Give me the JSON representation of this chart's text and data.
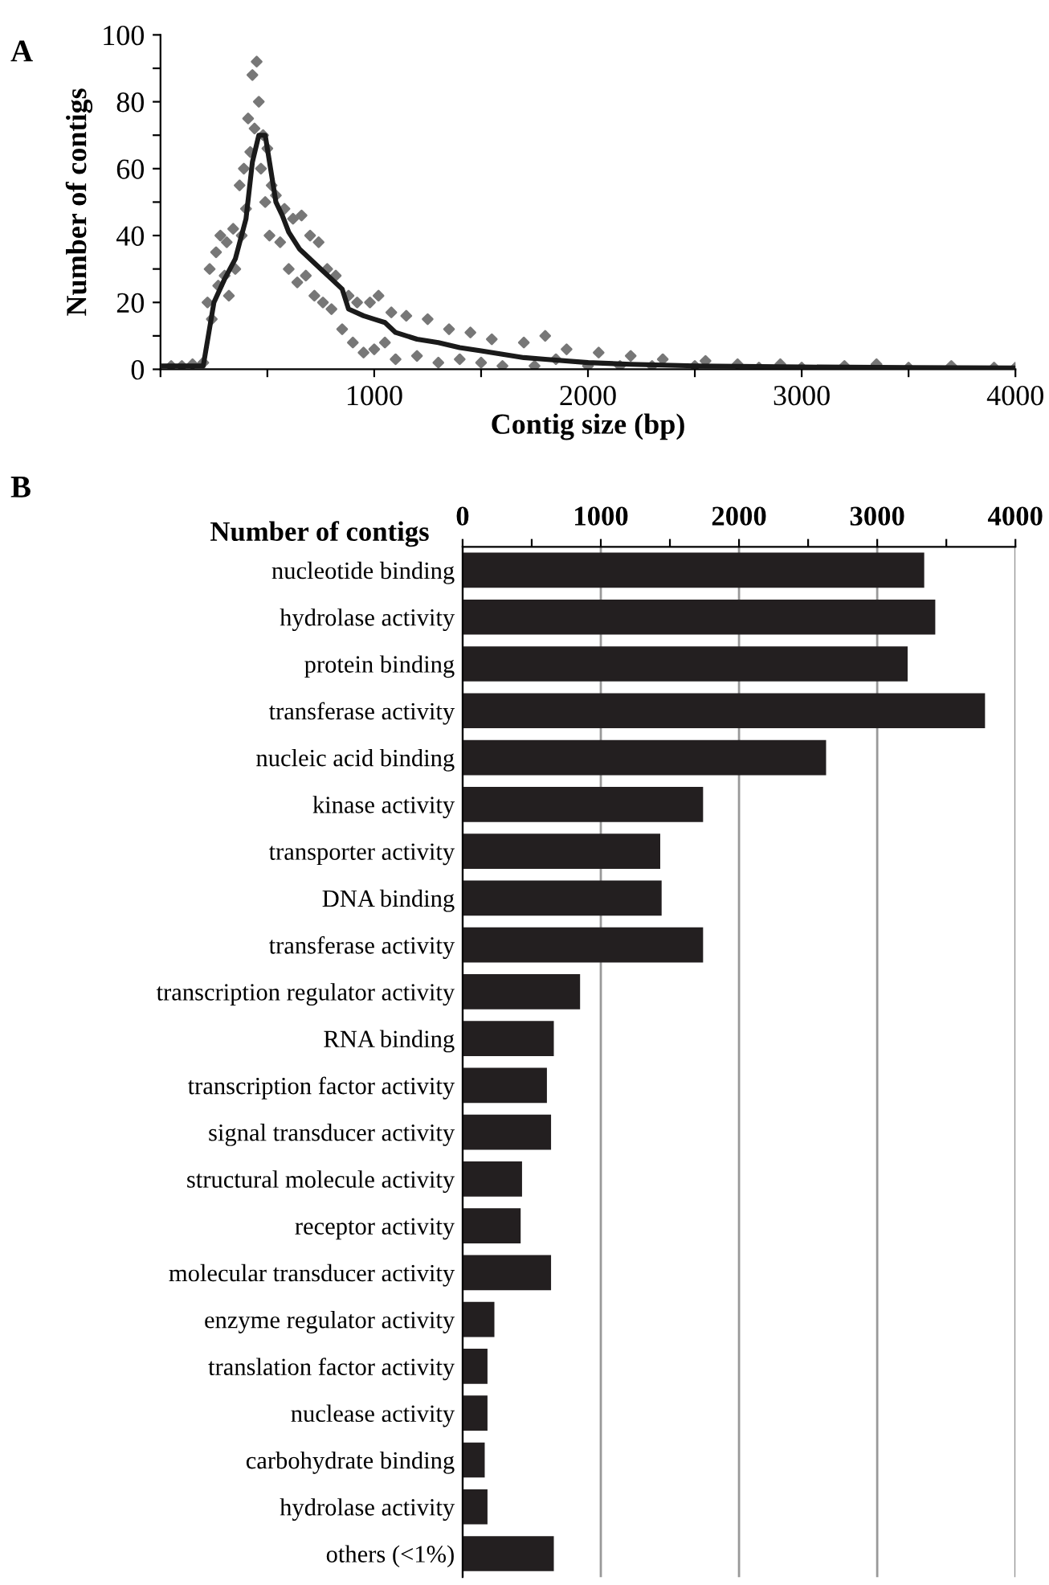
{
  "chart_data": [
    {
      "type": "scatter",
      "xlabel": "Contig size (bp)",
      "ylabel": "Number of contigs",
      "annotations": [
        "A"
      ],
      "xlim": [
        0,
        4000
      ],
      "xticks": [
        {
          "value": 0,
          "label": null
        },
        {
          "value": 500,
          "label": null
        },
        1000,
        {
          "value": 1500,
          "label": null
        },
        2000,
        {
          "value": 2500,
          "label": null
        },
        3000,
        {
          "value": 3500,
          "label": null
        },
        4000
      ],
      "ylim": [
        0,
        100
      ],
      "yticks": [
        0,
        {
          "value": 10,
          "label": null
        },
        20,
        {
          "value": 30,
          "label": null
        },
        40,
        {
          "value": 50,
          "label": null
        },
        60,
        {
          "value": 70,
          "label": null
        },
        80,
        {
          "value": 90,
          "label": null
        },
        100
      ],
      "grid": false,
      "legend": false,
      "series": [
        {
          "type": "scatter",
          "color": "#777777",
          "marker": "diamond",
          "x": [
            50,
            100,
            150,
            200,
            220,
            230,
            240,
            260,
            270,
            280,
            300,
            310,
            320,
            340,
            350,
            370,
            380,
            390,
            400,
            410,
            420,
            430,
            440,
            450,
            460,
            470,
            480,
            490,
            500,
            510,
            520,
            540,
            560,
            580,
            600,
            620,
            640,
            660,
            680,
            700,
            720,
            740,
            760,
            780,
            800,
            820,
            850,
            880,
            900,
            920,
            950,
            980,
            1000,
            1020,
            1050,
            1080,
            1100,
            1150,
            1200,
            1250,
            1300,
            1350,
            1400,
            1450,
            1500,
            1550,
            1600,
            1700,
            1750,
            1800,
            1850,
            1900,
            2000,
            2050,
            2150,
            2200,
            2300,
            2350,
            2500,
            2550,
            2700,
            2800,
            2900,
            3000,
            3200,
            3350,
            3500,
            3700,
            3900,
            4000
          ],
          "values": [
            1,
            1,
            1.5,
            2,
            20,
            30,
            15,
            35,
            25,
            40,
            28,
            38,
            22,
            42,
            30,
            55,
            40,
            60,
            48,
            75,
            65,
            88,
            72,
            92,
            80,
            60,
            70,
            50,
            66,
            40,
            55,
            52,
            38,
            48,
            30,
            45,
            26,
            46,
            28,
            40,
            22,
            38,
            20,
            30,
            18,
            28,
            12,
            22,
            8,
            20,
            5,
            20,
            6,
            22,
            8,
            17,
            3,
            16,
            4,
            15,
            2,
            12,
            3,
            11,
            2,
            9,
            1,
            8,
            1,
            10,
            3,
            6,
            1,
            5,
            1,
            4,
            1,
            3,
            1,
            2.5,
            1.5,
            0.5,
            1.5,
            0.5,
            1,
            1.5,
            0.5,
            1,
            0.5,
            0.5
          ]
        },
        {
          "type": "line",
          "color": "#1a1a1a",
          "marker": "none",
          "line_style": "solid",
          "x": [
            0,
            100,
            200,
            250,
            300,
            350,
            400,
            430,
            460,
            490,
            510,
            540,
            570,
            600,
            650,
            700,
            750,
            800,
            850,
            880,
            950,
            1000,
            1050,
            1100,
            1200,
            1300,
            1400,
            1500,
            1600,
            1700,
            1800,
            2000,
            2200,
            2500,
            3000,
            3500,
            4000
          ],
          "values": [
            1,
            1,
            1,
            20,
            27,
            33,
            45,
            62,
            70,
            70,
            62,
            50,
            46,
            41,
            36,
            33,
            30,
            27,
            24,
            18,
            16,
            15,
            14,
            11,
            9,
            8,
            6.5,
            5.5,
            4.5,
            3.5,
            3,
            2,
            1.5,
            1,
            0.7,
            0.5,
            0.4
          ]
        }
      ]
    },
    {
      "type": "bar",
      "orientation": "horizontal",
      "xlabel": "Number of contigs",
      "annotations": [
        "B"
      ],
      "color": "#231f20",
      "categories": [
        "nucleotide binding",
        "hydrolase activity",
        "protein binding",
        "transferase activity",
        "nucleic acid binding",
        "kinase activity",
        "transporter activity",
        "DNA binding",
        "transferase activity",
        "transcription regulator activity",
        "RNA binding",
        "transcription factor activity",
        "signal transducer activity",
        "structural molecule activity",
        "receptor activity",
        "molecular transducer activity",
        "enzyme regulator activity",
        "translation factor activity",
        "nuclease activity",
        "carbohydrate binding",
        "hydrolase activity",
        "others (<1%)"
      ],
      "values": [
        3340,
        3420,
        3220,
        3780,
        2630,
        1740,
        1430,
        1440,
        1740,
        850,
        660,
        610,
        640,
        430,
        420,
        640,
        230,
        180,
        180,
        160,
        180,
        660
      ],
      "xlim": [
        0,
        4000
      ],
      "xticks": [
        0,
        {
          "value": 500,
          "label": null
        },
        1000,
        {
          "value": 1500,
          "label": null
        },
        2000,
        {
          "value": 2500,
          "label": null
        },
        3000,
        {
          "value": 3500,
          "label": null
        },
        4000
      ],
      "grid": "x",
      "legend": false
    }
  ]
}
